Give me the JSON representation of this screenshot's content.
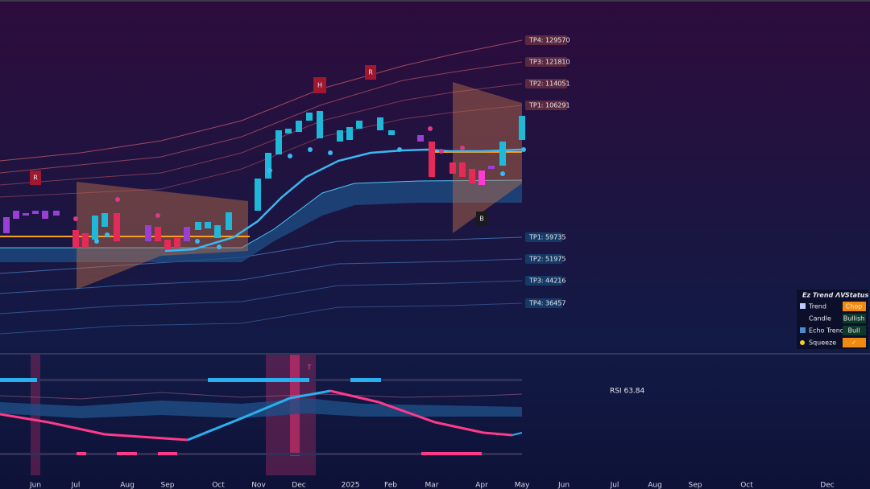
{
  "upper_targets": [
    "TP4: 129570",
    "TP3: 121810",
    "TP2: 114051",
    "TP1: 106291"
  ],
  "lower_targets": [
    "TP1: 59735",
    "TP2: 51975",
    "TP3: 44216",
    "TP4: 36457"
  ],
  "signals": [
    "R",
    "H",
    "R",
    "B",
    "T"
  ],
  "status_panel": {
    "title": "Ez Trend ΛV",
    "header": "Status",
    "rows": [
      [
        "Trend",
        "Chop"
      ],
      [
        "Candle",
        "Bullish"
      ],
      [
        "Echo Trend",
        "Bull"
      ],
      [
        "Squeeze",
        "✓"
      ]
    ]
  },
  "oscillator_label": "RSI 63.84",
  "x_axis": [
    "Jun",
    "Jul",
    "Aug",
    "Sep",
    "Oct",
    "Nov",
    "Dec",
    "2025",
    "Feb",
    "Mar",
    "Apr",
    "May",
    "Jun",
    "Jul",
    "Aug",
    "Sep",
    "Oct",
    "Dec"
  ]
}
